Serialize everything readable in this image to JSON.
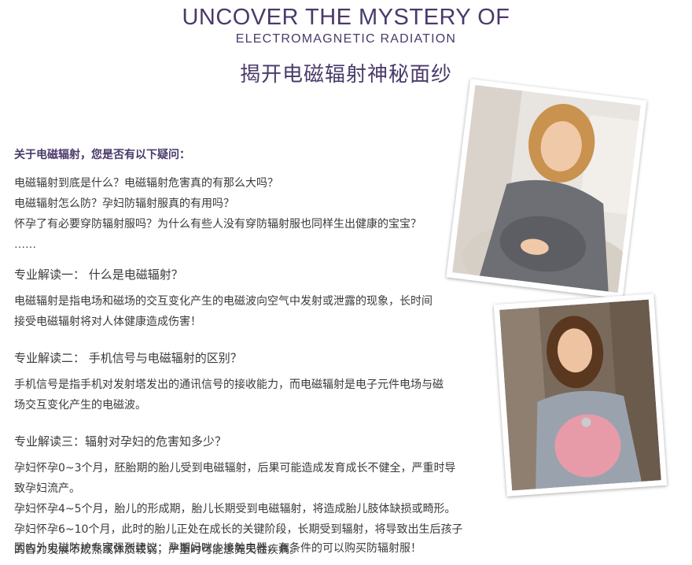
{
  "header": {
    "title_en": "UNCOVER THE MYSTERY OF",
    "subtitle_en": "ELECTROMAGNETIC RADIATION",
    "title_cn": "揭开电磁辐射神秘面纱"
  },
  "intro": {
    "heading": "关于电磁辐射，您是否有以下疑问：",
    "questions": [
      "电磁辐射到底是什么？电磁辐射危害真的有那么大吗？",
      "电磁辐射怎么防？孕妇防辐射服真的有用吗？",
      "怀孕了有必要穿防辐射服吗？为什么有些人没有穿防辐射服也同样生出健康的宝宝？"
    ],
    "ellipsis": "……"
  },
  "sections": [
    {
      "heading": "专业解读一：  什么是电磁辐射？",
      "lines": [
        "电磁辐射是指电场和磁场的交互变化产生的电磁波向空气中发射或泄露的现象，长时间",
        "接受电磁辐射将对人体健康造成伤害！"
      ]
    },
    {
      "heading": "专业解读二： 手机信号与电磁辐射的区别？",
      "lines": [
        "手机信号是指手机对发射塔发出的通讯信号的接收能力，而电磁辐射是电子元件电场与磁",
        "场交互变化产生的电磁波。"
      ]
    },
    {
      "heading": "专业解读三：辐射对孕妇的危害知多少？",
      "lines": [
        "孕妇怀孕0~3个月，胚胎期的胎儿受到电磁辐射，后果可能造成发育成长不健全，严重时导",
        "致孕妇流产。",
        "孕妇怀孕4~5个月，胎儿的形成期，胎儿长期受到电磁辐射，将造成胎儿肢体缺损或畸形。",
        "孕妇怀孕6~10个月，此时的胎儿正处在成长的关键阶段，长期受到辐射，将导致出生后孩子",
        "的智力发展不成熟或体质较弱，严重时可能患先天性疾病。"
      ]
    }
  ],
  "final_note": "国内外电磁防护专家强烈建议：孕期妈咪少接触电器，有条件的可以购买防辐射服！",
  "colors": {
    "accent": "#4a3a6a",
    "text": "#3a3a3a"
  }
}
